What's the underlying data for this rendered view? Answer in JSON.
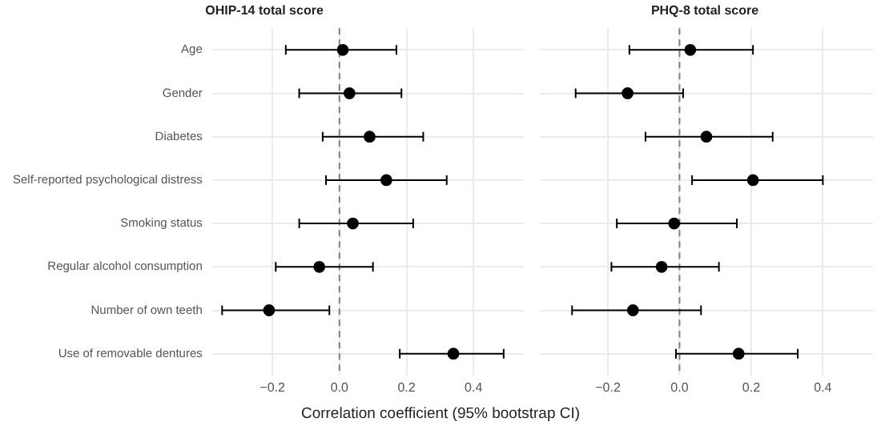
{
  "chart_data": [
    {
      "type": "scatter",
      "orientation": "horizontal",
      "title": "OHIP-14 total score",
      "xlabel": "Correlation coefficient (95% bootstrap CI)",
      "categories": [
        "Age",
        "Gender",
        "Diabetes",
        "Self-reported psychological distress",
        "Smoking status",
        "Regular alcohol consumption",
        "Number of own teeth",
        "Use of removable dentures"
      ],
      "values": [
        0.01,
        0.03,
        0.09,
        0.14,
        0.04,
        -0.06,
        -0.21,
        0.34
      ],
      "errors": [
        [
          -0.16,
          0.17
        ],
        [
          -0.12,
          0.185
        ],
        [
          -0.05,
          0.25
        ],
        [
          -0.04,
          0.32
        ],
        [
          -0.12,
          0.22
        ],
        [
          -0.19,
          0.1
        ],
        [
          -0.35,
          -0.03
        ],
        [
          0.18,
          0.49
        ]
      ],
      "color": "#000000",
      "marker": "circle",
      "xlim": [
        -0.38,
        0.55
      ],
      "xticks": [
        -0.2,
        {
          "value": 0,
          "label": "0.0"
        },
        0.2,
        0.4
      ],
      "ref_lines": [
        {
          "axis": "x",
          "value": 0,
          "line_style": "dashed",
          "color": "#808080"
        }
      ],
      "grid": true
    },
    {
      "type": "scatter",
      "orientation": "horizontal",
      "title": "PHQ-8 total score",
      "categories": [
        null,
        null,
        null,
        null,
        null,
        null,
        null,
        null
      ],
      "values": [
        0.03,
        -0.145,
        0.075,
        0.205,
        -0.015,
        -0.05,
        -0.13,
        0.165
      ],
      "errors": [
        [
          -0.14,
          0.205
        ],
        [
          -0.29,
          0.01
        ],
        [
          -0.095,
          0.26
        ],
        [
          0.035,
          0.4
        ],
        [
          -0.175,
          0.16
        ],
        [
          -0.19,
          0.11
        ],
        [
          -0.3,
          0.06
        ],
        [
          -0.01,
          0.33
        ]
      ],
      "color": "#000000",
      "marker": "circle",
      "xlim": [
        -0.39,
        0.54
      ],
      "xticks": [
        -0.2,
        {
          "value": 0,
          "label": "0.0"
        },
        0.2,
        0.4
      ],
      "ref_lines": [
        {
          "axis": "x",
          "value": 0,
          "line_style": "dashed",
          "color": "#808080"
        }
      ],
      "grid": true,
      "tick_labels": "x"
    }
  ]
}
